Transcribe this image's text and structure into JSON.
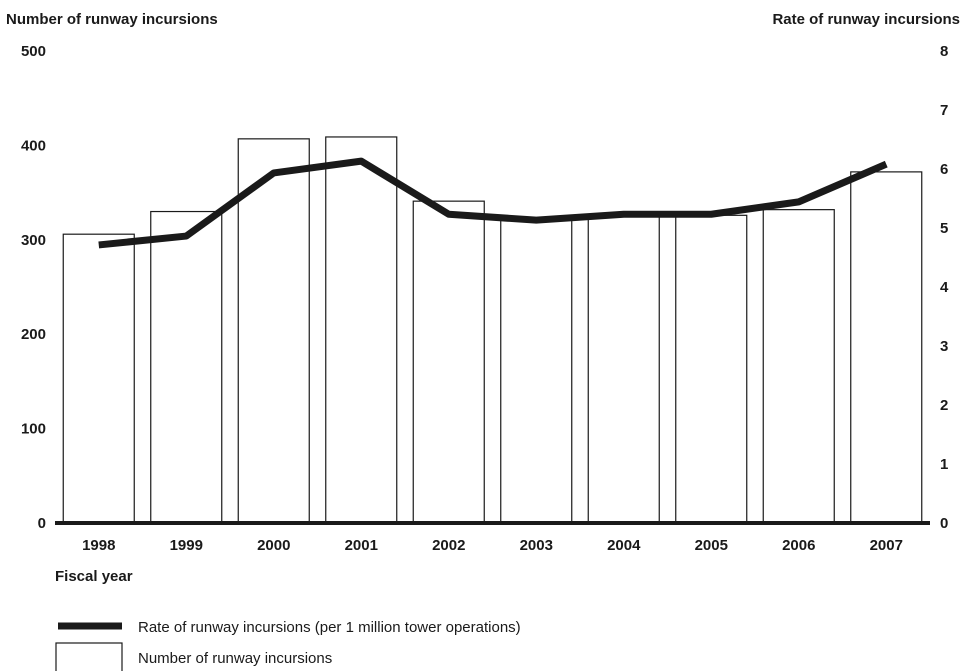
{
  "chart_data": {
    "type": "bar",
    "y_label": "Number of runway incursions",
    "y2_label": "Rate of runway incursions",
    "x_label": "Fiscal year",
    "categories": [
      "1998",
      "1999",
      "2000",
      "2001",
      "2002",
      "2003",
      "2004",
      "2005",
      "2006",
      "2007"
    ],
    "series": [
      {
        "name": "Rate of runway incursions (per 1 million tower operations)",
        "type": "line",
        "axis": "y2",
        "color": "#1a1a1a",
        "values": [
          4.73,
          4.88,
          5.95,
          6.15,
          5.25,
          5.15,
          5.25,
          5.25,
          5.46,
          6.1
        ]
      },
      {
        "name": "Number of runway incursions",
        "type": "bar",
        "color": "#ffffff",
        "values": [
          307,
          331,
          408,
          410,
          342,
          324,
          327,
          327,
          333,
          373
        ]
      }
    ],
    "ylim": [
      0,
      500
    ],
    "yticks": [
      0,
      100,
      200,
      300,
      400,
      500
    ],
    "y2lim": [
      0,
      8
    ],
    "y2ticks": [
      0,
      1,
      2,
      3,
      4,
      5,
      6,
      7,
      8
    ],
    "grid": false
  }
}
